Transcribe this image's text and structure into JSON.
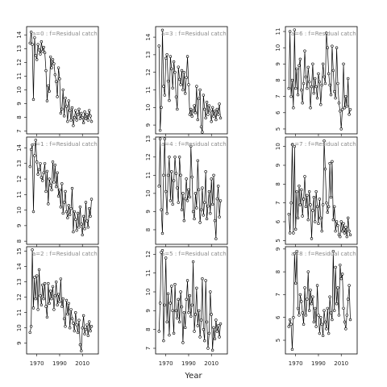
{
  "x_axis_label": "Year",
  "chart_data": [
    {
      "type": "line",
      "title": "a=0 : f=Residual catch",
      "color": "#000000",
      "marker": "circle",
      "xlim": [
        1961,
        2024
      ],
      "xticks": [
        1970,
        1990,
        2010
      ],
      "ylim": [
        6.8,
        14.6
      ],
      "yticks": [
        7,
        8,
        9,
        10,
        11,
        12,
        13,
        14
      ],
      "x": [
        1964,
        1965,
        1966,
        1967,
        1968,
        1969,
        1970,
        1971,
        1972,
        1973,
        1974,
        1975,
        1976,
        1977,
        1978,
        1979,
        1980,
        1981,
        1982,
        1983,
        1984,
        1985,
        1986,
        1987,
        1988,
        1989,
        1990,
        1991,
        1992,
        1993,
        1994,
        1995,
        1996,
        1997,
        1998,
        1999,
        2000,
        2001,
        2002,
        2003,
        2004,
        2005,
        2006,
        2007,
        2008,
        2009,
        2010,
        2011,
        2012,
        2013,
        2014,
        2015,
        2016,
        2017,
        2018
      ],
      "values": [
        13.4,
        14.2,
        13.3,
        9.3,
        13.8,
        12.5,
        12.2,
        13.3,
        12.9,
        12.6,
        13.5,
        12.8,
        13.1,
        12.7,
        11.4,
        9.2,
        10.3,
        9.9,
        12.4,
        11.6,
        12.2,
        11.9,
        11.1,
        10.6,
        9.5,
        11.6,
        10.8,
        8.3,
        8.6,
        10.0,
        8.1,
        9.4,
        8.8,
        7.7,
        9.2,
        8.5,
        7.8,
        8.7,
        7.4,
        8.0,
        8.5,
        7.8,
        8.2,
        8.6,
        7.9,
        8.3,
        8.0,
        7.6,
        8.4,
        7.9,
        8.2,
        7.8,
        8.5,
        8.1,
        7.7
      ]
    },
    {
      "type": "line",
      "title": "a=1 : f=Residual catch",
      "color": "#000000",
      "marker": "circle",
      "xlim": [
        1961,
        2024
      ],
      "xticks": [
        1970,
        1990,
        2010
      ],
      "ylim": [
        7.8,
        14.7
      ],
      "yticks": [
        8,
        9,
        10,
        11,
        12,
        13,
        14
      ],
      "x": [
        1964,
        1965,
        1966,
        1967,
        1968,
        1969,
        1970,
        1971,
        1972,
        1973,
        1974,
        1975,
        1976,
        1977,
        1978,
        1979,
        1980,
        1981,
        1982,
        1983,
        1984,
        1985,
        1986,
        1987,
        1988,
        1989,
        1990,
        1991,
        1992,
        1993,
        1994,
        1995,
        1996,
        1997,
        1998,
        1999,
        2000,
        2001,
        2002,
        2003,
        2004,
        2005,
        2006,
        2007,
        2008,
        2009,
        2010,
        2011,
        2012,
        2013,
        2014,
        2015,
        2016,
        2017,
        2018
      ],
      "values": [
        12.8,
        13.9,
        14.2,
        9.9,
        13.5,
        14.5,
        13.1,
        12.3,
        12.6,
        13.0,
        12.1,
        11.9,
        12.4,
        13.0,
        11.2,
        12.5,
        10.4,
        12.0,
        11.6,
        11.3,
        13.1,
        11.8,
        12.9,
        11.5,
        12.4,
        10.9,
        11.3,
        10.2,
        11.7,
        9.8,
        10.5,
        11.2,
        9.9,
        9.5,
        10.3,
        9.7,
        10.1,
        11.4,
        8.6,
        9.9,
        9.4,
        8.7,
        9.8,
        8.9,
        10.2,
        9.1,
        8.4,
        9.6,
        8.8,
        10.5,
        9.3,
        8.9,
        10.1,
        9.6,
        10.7
      ]
    },
    {
      "type": "line",
      "title": "a=2 : f=Residual catch",
      "color": "#000000",
      "marker": "circle",
      "xlim": [
        1961,
        2024
      ],
      "xticks": [
        1970,
        1990,
        2010
      ],
      "ylim": [
        8.3,
        15.3
      ],
      "yticks": [
        9,
        10,
        11,
        12,
        13,
        14,
        15
      ],
      "x": [
        1964,
        1965,
        1966,
        1967,
        1968,
        1969,
        1970,
        1971,
        1972,
        1973,
        1974,
        1975,
        1976,
        1977,
        1978,
        1979,
        1980,
        1981,
        1982,
        1983,
        1984,
        1985,
        1986,
        1987,
        1988,
        1989,
        1990,
        1991,
        1992,
        1993,
        1994,
        1995,
        1996,
        1997,
        1998,
        1999,
        2000,
        2001,
        2002,
        2003,
        2004,
        2005,
        2006,
        2007,
        2008,
        2009,
        2010,
        2011,
        2012,
        2013,
        2014,
        2015,
        2016,
        2017,
        2018
      ],
      "values": [
        9.7,
        10.1,
        15.1,
        11.3,
        13.3,
        11.9,
        13.4,
        11.2,
        13.8,
        12.1,
        11.5,
        12.8,
        11.9,
        12.9,
        11.4,
        10.7,
        12.9,
        11.6,
        12.4,
        11.9,
        12.7,
        11.2,
        12.1,
        13.0,
        11.5,
        12.2,
        11.7,
        13.2,
        11.4,
        11.9,
        10.6,
        10.1,
        11.8,
        10.9,
        11.6,
        10.0,
        11.2,
        10.6,
        10.3,
        9.8,
        11.0,
        10.2,
        9.7,
        10.5,
        8.9,
        8.5,
        10.0,
        10.8,
        9.6,
        9.9,
        10.2,
        9.5,
        10.4,
        9.8,
        10.1
      ]
    },
    {
      "type": "line",
      "title": "a=3 : f=Residual catch",
      "color": "#000000",
      "marker": "circle",
      "xlim": [
        1961,
        2024
      ],
      "xticks": [
        1970,
        1990,
        2010
      ],
      "ylim": [
        8.5,
        14.6
      ],
      "yticks": [
        9,
        10,
        11,
        12,
        13,
        14
      ],
      "x": [
        1964,
        1965,
        1966,
        1967,
        1968,
        1969,
        1970,
        1971,
        1972,
        1973,
        1974,
        1975,
        1976,
        1977,
        1978,
        1979,
        1980,
        1981,
        1982,
        1983,
        1984,
        1985,
        1986,
        1987,
        1988,
        1989,
        1990,
        1991,
        1992,
        1993,
        1994,
        1995,
        1996,
        1997,
        1998,
        1999,
        2000,
        2001,
        2002,
        2003,
        2004,
        2005,
        2006,
        2007,
        2008,
        2009,
        2010,
        2011,
        2012,
        2013,
        2014,
        2015,
        2016,
        2017,
        2018
      ],
      "values": [
        13.5,
        8.7,
        10.0,
        14.4,
        11.2,
        10.7,
        12.8,
        13.0,
        11.5,
        10.4,
        12.9,
        12.2,
        11.1,
        12.6,
        12.0,
        10.6,
        9.9,
        12.3,
        11.6,
        11.3,
        12.1,
        11.0,
        12.0,
        10.8,
        11.7,
        12.9,
        11.3,
        9.6,
        9.9,
        9.5,
        9.8,
        10.1,
        9.7,
        11.2,
        9.3,
        10.5,
        11.0,
        8.9,
        8.6,
        10.7,
        9.9,
        9.4,
        10.3,
        9.6,
        10.1,
        9.8,
        9.2,
        10.0,
        9.5,
        9.8,
        9.3,
        9.9,
        9.6,
        10.2,
        9.4
      ]
    },
    {
      "type": "line",
      "title": "a=4 : f=Residual catch",
      "color": "#000000",
      "marker": "circle",
      "xlim": [
        1961,
        2024
      ],
      "xticks": [
        1970,
        1990,
        2010
      ],
      "ylim": [
        7.2,
        13.1
      ],
      "yticks": [
        8,
        9,
        10,
        11,
        12,
        13
      ],
      "x": [
        1964,
        1965,
        1966,
        1967,
        1968,
        1969,
        1970,
        1971,
        1972,
        1973,
        1974,
        1975,
        1976,
        1977,
        1978,
        1979,
        1980,
        1981,
        1982,
        1983,
        1984,
        1985,
        1986,
        1987,
        1988,
        1989,
        1990,
        1991,
        1992,
        1993,
        1994,
        1995,
        1996,
        1997,
        1998,
        1999,
        2000,
        2001,
        2002,
        2003,
        2004,
        2005,
        2006,
        2007,
        2008,
        2009,
        2010,
        2011,
        2012,
        2013,
        2014,
        2015,
        2016,
        2017,
        2018
      ],
      "values": [
        10.4,
        13.0,
        9.1,
        7.8,
        11.0,
        13.0,
        10.1,
        8.9,
        11.0,
        12.0,
        9.6,
        11.2,
        9.4,
        10.7,
        12.0,
        11.1,
        10.3,
        9.5,
        12.0,
        11.0,
        9.1,
        10.0,
        8.5,
        9.7,
        10.8,
        9.6,
        10.2,
        9.8,
        12.6,
        10.9,
        9.0,
        8.6,
        10.0,
        9.2,
        11.8,
        10.2,
        8.4,
        9.1,
        10.3,
        8.8,
        9.5,
        11.2,
        8.6,
        9.3,
        10.1,
        8.9,
        10.8,
        9.4,
        11.0,
        8.5,
        7.5,
        9.7,
        10.4,
        8.7,
        9.6
      ]
    },
    {
      "type": "line",
      "title": "a=5 : f=Residual catch",
      "color": "#000000",
      "marker": "circle",
      "xlim": [
        1961,
        2024
      ],
      "xticks": [
        1970,
        1990,
        2010
      ],
      "ylim": [
        6.7,
        12.4
      ],
      "yticks": [
        7,
        8,
        9,
        10,
        11,
        12
      ],
      "x": [
        1964,
        1965,
        1966,
        1967,
        1968,
        1969,
        1970,
        1971,
        1972,
        1973,
        1974,
        1975,
        1976,
        1977,
        1978,
        1979,
        1980,
        1981,
        1982,
        1983,
        1984,
        1985,
        1986,
        1987,
        1988,
        1989,
        1990,
        1991,
        1992,
        1993,
        1994,
        1995,
        1996,
        1997,
        1998,
        1999,
        2000,
        2001,
        2002,
        2003,
        2004,
        2005,
        2006,
        2007,
        2008,
        2009,
        2010,
        2011,
        2012,
        2013,
        2014,
        2015,
        2016,
        2017,
        2018
      ],
      "values": [
        7.9,
        9.4,
        12.1,
        12.2,
        7.4,
        9.3,
        11.8,
        8.4,
        9.9,
        7.7,
        9.4,
        10.3,
        9.0,
        7.8,
        10.4,
        9.0,
        8.6,
        9.6,
        8.4,
        10.0,
        9.2,
        7.3,
        8.9,
        8.1,
        9.6,
        10.6,
        8.9,
        9.8,
        8.7,
        9.3,
        11.6,
        7.9,
        8.8,
        10.2,
        8.2,
        9.0,
        7.6,
        8.5,
        10.7,
        8.0,
        7.4,
        10.6,
        8.4,
        7.0,
        7.8,
        10.0,
        8.8,
        6.9,
        8.1,
        7.5,
        8.5,
        7.9,
        8.2,
        7.6,
        8.3
      ]
    },
    {
      "type": "line",
      "title": "a=6 : f=Residual catch",
      "color": "#000000",
      "marker": "circle",
      "xlim": [
        1961,
        2024
      ],
      "xticks": [
        1970,
        1990,
        2010
      ],
      "ylim": [
        4.7,
        11.3
      ],
      "yticks": [
        5,
        6,
        7,
        8,
        9,
        10,
        11
      ],
      "x": [
        1964,
        1965,
        1966,
        1967,
        1968,
        1969,
        1970,
        1971,
        1972,
        1973,
        1974,
        1975,
        1976,
        1977,
        1978,
        1979,
        1980,
        1981,
        1982,
        1983,
        1984,
        1985,
        1986,
        1987,
        1988,
        1989,
        1990,
        1991,
        1992,
        1993,
        1994,
        1995,
        1996,
        1997,
        1998,
        1999,
        2000,
        2001,
        2002,
        2003,
        2004,
        2005,
        2006,
        2007,
        2008,
        2009,
        2010,
        2011,
        2012,
        2013,
        2014,
        2015,
        2016,
        2017,
        2018
      ],
      "values": [
        7.5,
        11.0,
        7.0,
        8.0,
        6.3,
        11.1,
        7.5,
        8.7,
        7.1,
        8.9,
        9.3,
        7.4,
        6.6,
        7.8,
        9.8,
        8.2,
        7.5,
        8.8,
        7.9,
        6.3,
        7.6,
        9.0,
        7.2,
        8.1,
        7.6,
        6.9,
        8.4,
        7.9,
        6.5,
        7.7,
        9.0,
        8.2,
        7.8,
        10.9,
        10.0,
        8.4,
        7.7,
        7.1,
        10.1,
        8.6,
        7.3,
        6.9,
        10.0,
        7.8,
        6.6,
        6.1,
        5.0,
        6.2,
        9.0,
        6.3,
        7.0,
        6.4,
        8.1,
        5.9,
        6.2
      ]
    },
    {
      "type": "line",
      "title": "a=7 : f=Residual catch",
      "color": "#000000",
      "marker": "circle",
      "xlim": [
        1961,
        2024
      ],
      "xticks": [
        1970,
        1990,
        2010
      ],
      "ylim": [
        4.8,
        10.5
      ],
      "yticks": [
        5,
        6,
        7,
        8,
        9,
        10
      ],
      "x": [
        1964,
        1965,
        1966,
        1967,
        1968,
        1969,
        1970,
        1971,
        1972,
        1973,
        1974,
        1975,
        1976,
        1977,
        1978,
        1979,
        1980,
        1981,
        1982,
        1983,
        1984,
        1985,
        1986,
        1987,
        1988,
        1989,
        1990,
        1991,
        1992,
        1993,
        1994,
        1995,
        1996,
        1997,
        1998,
        1999,
        2000,
        2001,
        2002,
        2003,
        2004,
        2005,
        2006,
        2007,
        2008,
        2009,
        2010,
        2011,
        2012,
        2013,
        2014,
        2015,
        2016,
        2017,
        2018
      ],
      "values": [
        6.4,
        5.4,
        7.0,
        10.1,
        5.4,
        10.0,
        5.6,
        7.6,
        6.2,
        7.9,
        6.9,
        7.7,
        6.3,
        7.2,
        8.4,
        6.8,
        7.4,
        6.1,
        7.6,
        6.9,
        5.1,
        6.6,
        7.3,
        6.0,
        7.6,
        6.8,
        5.9,
        7.2,
        6.2,
        5.5,
        6.9,
        10.3,
        8.8,
        7.0,
        6.5,
        6.8,
        9.1,
        7.3,
        9.2,
        6.1,
        6.8,
        5.5,
        6.0,
        5.8,
        5.3,
        5.2,
        6.0,
        5.5,
        5.9,
        5.4,
        5.7,
        5.2,
        6.2,
        5.5,
        5.3
      ]
    },
    {
      "type": "line",
      "title": "a=8 : f=Residual catch",
      "color": "#000000",
      "marker": "circle",
      "xlim": [
        1961,
        2024
      ],
      "xticks": [
        1970,
        1990,
        2010
      ],
      "ylim": [
        4.4,
        9.1
      ],
      "yticks": [
        5,
        6,
        7,
        8,
        9
      ],
      "x": [
        1964,
        1965,
        1966,
        1967,
        1968,
        1969,
        1970,
        1971,
        1972,
        1973,
        1974,
        1975,
        1976,
        1977,
        1978,
        1979,
        1980,
        1981,
        1982,
        1983,
        1984,
        1985,
        1986,
        1987,
        1988,
        1989,
        1990,
        1991,
        1992,
        1993,
        1994,
        1995,
        1996,
        1997,
        1998,
        1999,
        2000,
        2001,
        2002,
        2003,
        2004,
        2005,
        2006,
        2007,
        2008,
        2009,
        2010,
        2011,
        2012,
        2013,
        2014,
        2015,
        2016,
        2017,
        2018
      ],
      "values": [
        5.6,
        5.9,
        5.7,
        4.6,
        6.0,
        8.8,
        7.5,
        8.9,
        6.4,
        6.1,
        7.0,
        6.7,
        6.2,
        5.7,
        7.3,
        6.1,
        6.8,
        8.0,
        6.3,
        7.2,
        6.6,
        6.9,
        5.8,
        6.4,
        5.6,
        7.4,
        6.1,
        5.3,
        6.0,
        5.7,
        5.2,
        6.3,
        5.8,
        5.5,
        6.4,
        5.3,
        6.9,
        6.2,
        5.9,
        8.9,
        6.3,
        8.2,
        6.6,
        7.3,
        6.1,
        8.3,
        7.7,
        7.9,
        6.4,
        5.8,
        5.5,
        6.1,
        6.8,
        7.4,
        5.9
      ]
    }
  ]
}
